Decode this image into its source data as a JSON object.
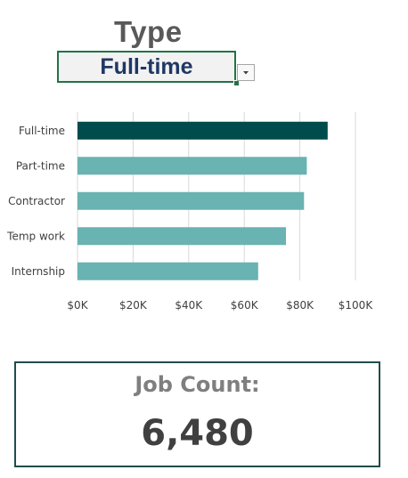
{
  "slicer": {
    "title": "Type",
    "selected_value": "Full-time",
    "dropdown_icon": "chevron-down-icon"
  },
  "chart_data": {
    "type": "bar",
    "orientation": "horizontal",
    "categories": [
      "Full-time",
      "Part-time",
      "Contractor",
      "Temp work",
      "Internship"
    ],
    "values": [
      90000,
      82500,
      81500,
      75000,
      65000
    ],
    "highlighted_category": "Full-time",
    "x_ticks": [
      "$0K",
      "$20K",
      "$40K",
      "$60K",
      "$80K",
      "$100K"
    ],
    "xlim": [
      0,
      100000
    ],
    "grid": true,
    "legend": "none",
    "colors": {
      "highlight": "#004b4b",
      "default": "#69b3b2",
      "grid": "#d9d9d9"
    }
  },
  "kpi": {
    "label": "Job Count:",
    "value": "6,480"
  }
}
